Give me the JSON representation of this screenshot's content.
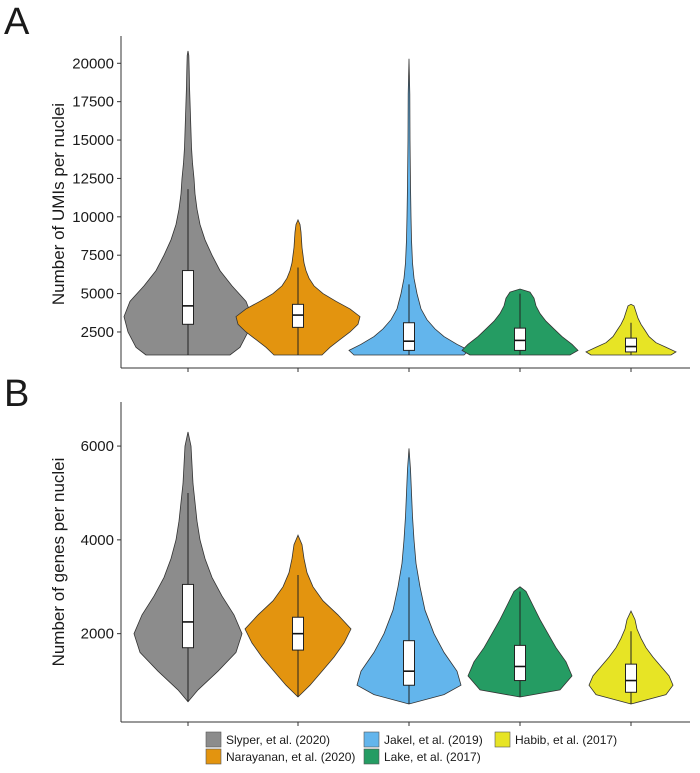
{
  "colors": {
    "Slyper": "#8c8c8c",
    "Narayanan": "#e3940f",
    "Jakel": "#63b5ec",
    "Lake": "#259c63",
    "Habib": "#e7e425"
  },
  "legend": [
    {
      "key": "Slyper",
      "label": "Slyper, et al. (2020)"
    },
    {
      "key": "Narayanan",
      "label": "Narayanan, et al. (2020)"
    },
    {
      "key": "Jakel",
      "label": "Jakel, et al. (2019)"
    },
    {
      "key": "Lake",
      "label": "Lake, et al. (2017)"
    },
    {
      "key": "Habib",
      "label": "Habib, et al. (2017)"
    }
  ],
  "chart_data": [
    {
      "panel": "A",
      "type": "violin",
      "ylabel": "Number of UMIs per nuclei",
      "xlabel": "",
      "ylim": [
        1000,
        21000
      ],
      "yticks": [
        2500,
        5000,
        7500,
        10000,
        12500,
        15000,
        17500,
        20000
      ],
      "series": [
        {
          "key": "Slyper",
          "box": {
            "q1": 3000,
            "median": 4200,
            "q3": 6500,
            "whisker_low": 1000,
            "whisker_high": 11800
          },
          "profile": [
            [
              1000,
              42
            ],
            [
              1500,
              52
            ],
            [
              2500,
              60
            ],
            [
              3500,
              64
            ],
            [
              4500,
              58
            ],
            [
              5500,
              44
            ],
            [
              6500,
              32
            ],
            [
              7500,
              24
            ],
            [
              8500,
              17
            ],
            [
              9500,
              12
            ],
            [
              10500,
              9
            ],
            [
              11500,
              7
            ],
            [
              12500,
              6
            ],
            [
              13500,
              4.5
            ],
            [
              14500,
              3.5
            ],
            [
              15500,
              3
            ],
            [
              16500,
              2.5
            ],
            [
              17500,
              2
            ],
            [
              18500,
              1.5
            ],
            [
              19500,
              1.2
            ],
            [
              20500,
              0.8
            ],
            [
              20800,
              0
            ]
          ]
        },
        {
          "key": "Narayanan",
          "box": {
            "q1": 2800,
            "median": 3600,
            "q3": 4300,
            "whisker_low": 1000,
            "whisker_high": 6700
          },
          "profile": [
            [
              1000,
              24
            ],
            [
              1500,
              32
            ],
            [
              2000,
              42
            ],
            [
              2500,
              52
            ],
            [
              3000,
              60
            ],
            [
              3500,
              62
            ],
            [
              4000,
              52
            ],
            [
              4500,
              38
            ],
            [
              5000,
              25
            ],
            [
              5500,
              16
            ],
            [
              6000,
              11
            ],
            [
              6500,
              8
            ],
            [
              7000,
              6
            ],
            [
              7500,
              5
            ],
            [
              8000,
              4
            ],
            [
              8500,
              3.5
            ],
            [
              9000,
              3
            ],
            [
              9500,
              2
            ],
            [
              9800,
              0
            ]
          ]
        },
        {
          "key": "Jakel",
          "box": {
            "q1": 1300,
            "median": 1900,
            "q3": 3100,
            "whisker_low": 1000,
            "whisker_high": 5600
          },
          "profile": [
            [
              1000,
              55
            ],
            [
              1300,
              60
            ],
            [
              1700,
              48
            ],
            [
              2200,
              35
            ],
            [
              2700,
              26
            ],
            [
              3300,
              18
            ],
            [
              4000,
              12
            ],
            [
              5000,
              8
            ],
            [
              6000,
              5
            ],
            [
              7000,
              3.5
            ],
            [
              8500,
              2.5
            ],
            [
              10000,
              2
            ],
            [
              12000,
              1.5
            ],
            [
              15000,
              1
            ],
            [
              18000,
              0.8
            ],
            [
              20300,
              0
            ]
          ]
        },
        {
          "key": "Lake",
          "box": {
            "q1": 1300,
            "median": 1950,
            "q3": 2750,
            "whisker_low": 1000,
            "whisker_high": 5000
          },
          "profile": [
            [
              1000,
              50
            ],
            [
              1300,
              58
            ],
            [
              1700,
              52
            ],
            [
              2200,
              42
            ],
            [
              2700,
              34
            ],
            [
              3200,
              26
            ],
            [
              3700,
              20
            ],
            [
              4200,
              16
            ],
            [
              4700,
              14
            ],
            [
              5100,
              10
            ],
            [
              5300,
              0
            ]
          ]
        },
        {
          "key": "Habib",
          "box": {
            "q1": 1200,
            "median": 1550,
            "q3": 2100,
            "whisker_low": 1000,
            "whisker_high": 3100
          },
          "profile": [
            [
              1000,
              40
            ],
            [
              1200,
              45
            ],
            [
              1500,
              35
            ],
            [
              1800,
              25
            ],
            [
              2200,
              18
            ],
            [
              2600,
              14
            ],
            [
              3000,
              10
            ],
            [
              3400,
              7
            ],
            [
              3800,
              5
            ],
            [
              4200,
              3
            ],
            [
              4300,
              0
            ]
          ]
        }
      ]
    },
    {
      "panel": "B",
      "type": "violin",
      "ylabel": "Number of genes per nuclei",
      "xlabel": "",
      "ylim": [
        200,
        6600
      ],
      "yticks": [
        2000,
        4000,
        6000
      ],
      "series": [
        {
          "key": "Slyper",
          "box": {
            "q1": 1700,
            "median": 2250,
            "q3": 3050,
            "whisker_low": 550,
            "whisker_high": 5000
          },
          "profile": [
            [
              550,
              0
            ],
            [
              800,
              10
            ],
            [
              1200,
              30
            ],
            [
              1600,
              48
            ],
            [
              2000,
              54
            ],
            [
              2400,
              46
            ],
            [
              2800,
              34
            ],
            [
              3200,
              24
            ],
            [
              3600,
              17
            ],
            [
              4000,
              12
            ],
            [
              4400,
              9
            ],
            [
              4800,
              7
            ],
            [
              5200,
              5
            ],
            [
              5600,
              4
            ],
            [
              6000,
              3
            ],
            [
              6300,
              0
            ]
          ]
        },
        {
          "key": "Narayanan",
          "box": {
            "q1": 1650,
            "median": 2000,
            "q3": 2350,
            "whisker_low": 650,
            "whisker_high": 3250
          },
          "profile": [
            [
              650,
              0
            ],
            [
              900,
              12
            ],
            [
              1200,
              24
            ],
            [
              1500,
              36
            ],
            [
              1800,
              46
            ],
            [
              2100,
              53
            ],
            [
              2400,
              40
            ],
            [
              2700,
              25
            ],
            [
              3000,
              15
            ],
            [
              3300,
              9
            ],
            [
              3600,
              6
            ],
            [
              3900,
              4
            ],
            [
              4100,
              0
            ]
          ]
        },
        {
          "key": "Jakel",
          "box": {
            "q1": 900,
            "median": 1200,
            "q3": 1850,
            "whisker_low": 500,
            "whisker_high": 3200
          },
          "profile": [
            [
              500,
              0
            ],
            [
              700,
              35
            ],
            [
              900,
              52
            ],
            [
              1200,
              48
            ],
            [
              1600,
              35
            ],
            [
              2000,
              25
            ],
            [
              2500,
              16
            ],
            [
              3000,
              11
            ],
            [
              3500,
              7
            ],
            [
              4000,
              5
            ],
            [
              4500,
              3.5
            ],
            [
              5000,
              2.5
            ],
            [
              5500,
              1.5
            ],
            [
              5950,
              0
            ]
          ]
        },
        {
          "key": "Lake",
          "box": {
            "q1": 1000,
            "median": 1300,
            "q3": 1750,
            "whisker_low": 650,
            "whisker_high": 2900
          },
          "profile": [
            [
              650,
              0
            ],
            [
              800,
              40
            ],
            [
              1100,
              52
            ],
            [
              1400,
              46
            ],
            [
              1700,
              36
            ],
            [
              2000,
              28
            ],
            [
              2300,
              20
            ],
            [
              2600,
              13
            ],
            [
              2900,
              6
            ],
            [
              3000,
              0
            ]
          ]
        },
        {
          "key": "Habib",
          "box": {
            "q1": 750,
            "median": 1000,
            "q3": 1350,
            "whisker_low": 500,
            "whisker_high": 2050
          },
          "profile": [
            [
              500,
              0
            ],
            [
              700,
              35
            ],
            [
              900,
              42
            ],
            [
              1100,
              38
            ],
            [
              1300,
              30
            ],
            [
              1500,
              22
            ],
            [
              1700,
              15
            ],
            [
              1900,
              10
            ],
            [
              2100,
              6
            ],
            [
              2300,
              4
            ],
            [
              2480,
              0
            ]
          ]
        }
      ]
    }
  ]
}
